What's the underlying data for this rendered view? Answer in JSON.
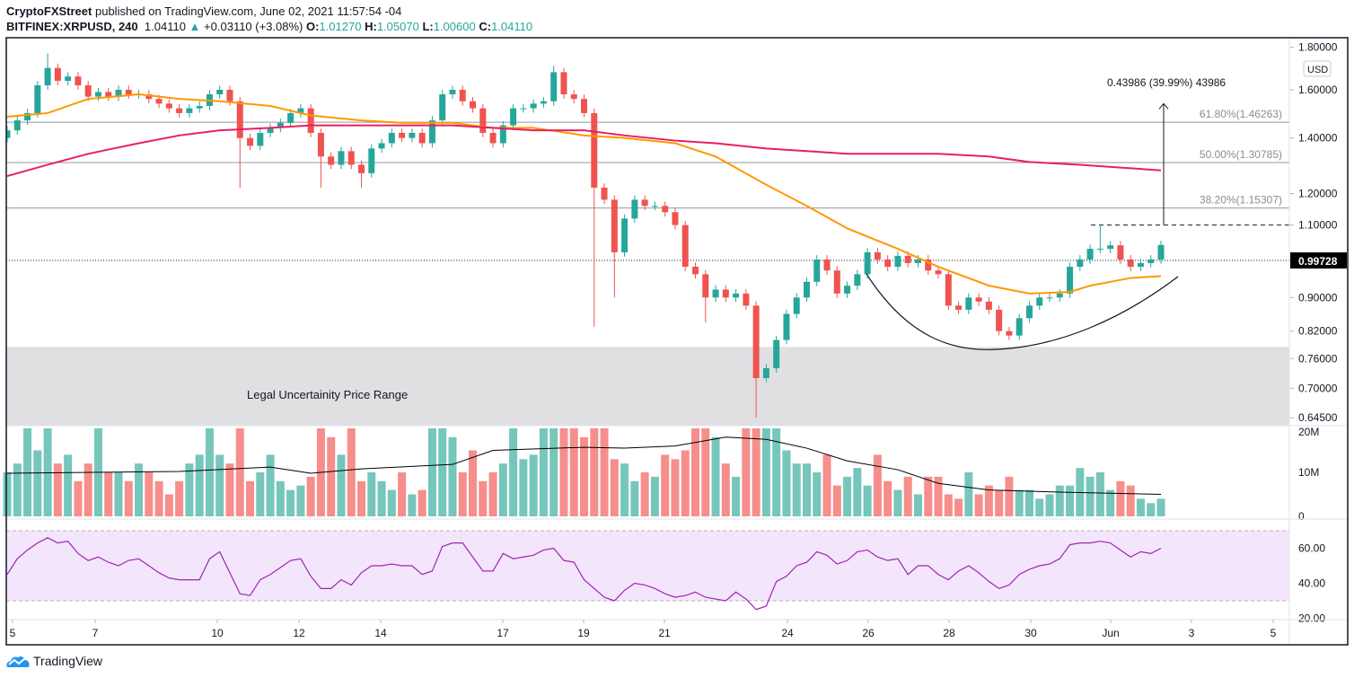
{
  "header": {
    "publisher": "CryptoFXStreet",
    "published_text": "published on TradingView.com, June 02, 2021 11:57:54 -04",
    "symbol": "BITFINEX:XRPUSD, 240",
    "last": "1.04110",
    "change": "+0.03110 (+3.08%)",
    "o_label": "O:",
    "o": "1.01270",
    "h_label": "H:",
    "h": "1.05070",
    "l_label": "L:",
    "l": "1.00600",
    "c_label": "C:",
    "c": "1.04110"
  },
  "footer": {
    "brand": "TradingView"
  },
  "colors": {
    "up": "#26a69a",
    "down": "#ef5350",
    "vol_up": "#76c6bc",
    "vol_down": "#f68e8c",
    "ma_fast": "#ff9800",
    "ma_slow": "#e91e63",
    "vol_ma": "#000000",
    "rsi": "#9c27b0",
    "rsi_band": "#f3e5fc",
    "zone": "#e0e0e3"
  },
  "chart_data": {
    "type": "candlestick",
    "interval": "240",
    "currency_label": "USD",
    "price_scale": "log",
    "y_ticks": [
      "1.80000",
      "1.60000",
      "1.40000",
      "1.20000",
      "1.10000",
      "0.90000",
      "0.82000",
      "0.76000",
      "0.70000",
      "0.64500"
    ],
    "x_ticks": [
      "5",
      "7",
      "10",
      "12",
      "14",
      "17",
      "19",
      "21",
      "24",
      "26",
      "28",
      "30",
      "Jun",
      "3",
      "5"
    ],
    "last_price_label": "0.99728",
    "last_price": 0.99728,
    "close": [
      1.43,
      1.47,
      1.5,
      1.62,
      1.7,
      1.64,
      1.66,
      1.62,
      1.57,
      1.59,
      1.57,
      1.6,
      1.58,
      1.58,
      1.56,
      1.54,
      1.52,
      1.5,
      1.52,
      1.53,
      1.58,
      1.6,
      1.55,
      1.4,
      1.37,
      1.42,
      1.44,
      1.46,
      1.5,
      1.52,
      1.42,
      1.33,
      1.3,
      1.35,
      1.3,
      1.27,
      1.36,
      1.38,
      1.42,
      1.4,
      1.42,
      1.38,
      1.47,
      1.58,
      1.6,
      1.55,
      1.52,
      1.42,
      1.38,
      1.45,
      1.52,
      1.52,
      1.54,
      1.55,
      1.68,
      1.58,
      1.56,
      1.5,
      1.22,
      1.18,
      1.02,
      1.12,
      1.18,
      1.16,
      1.16,
      1.14,
      1.1,
      0.98,
      0.96,
      0.9,
      0.92,
      0.9,
      0.91,
      0.88,
      0.72,
      0.74,
      0.8,
      0.86,
      0.9,
      0.94,
      1.0,
      0.97,
      0.91,
      0.93,
      0.96,
      1.02,
      1.0,
      0.98,
      1.01,
      0.99,
      1.0,
      0.97,
      0.96,
      0.88,
      0.87,
      0.9,
      0.89,
      0.87,
      0.82,
      0.81,
      0.85,
      0.88,
      0.9,
      0.9,
      0.91,
      0.98,
      1.0,
      1.03,
      1.03,
      1.04,
      1.0,
      0.98,
      0.99,
      1.0,
      1.0411
    ],
    "first_open": 1.4,
    "wick_extremes": {
      "4": {
        "high": 1.77
      },
      "23": {
        "low": 1.22
      },
      "31": {
        "low": 1.22
      },
      "35": {
        "low": 1.22
      },
      "54": {
        "high": 1.71
      },
      "58": {
        "low": 0.83
      },
      "60": {
        "low": 0.9
      },
      "69": {
        "low": 0.84
      },
      "74": {
        "low": 0.645
      },
      "108": {
        "high": 1.1
      }
    },
    "ma_fast": [
      [
        0,
        1.485
      ],
      [
        4,
        1.5
      ],
      [
        8,
        1.56
      ],
      [
        13,
        1.58
      ],
      [
        17,
        1.56
      ],
      [
        21,
        1.55
      ],
      [
        26,
        1.53
      ],
      [
        30,
        1.49
      ],
      [
        35,
        1.47
      ],
      [
        39,
        1.46
      ],
      [
        44,
        1.46
      ],
      [
        48,
        1.44
      ],
      [
        52,
        1.44
      ],
      [
        57,
        1.41
      ],
      [
        61,
        1.4
      ],
      [
        66,
        1.38
      ],
      [
        70,
        1.33
      ],
      [
        75,
        1.23
      ],
      [
        79,
        1.16
      ],
      [
        83,
        1.09
      ],
      [
        88,
        1.03
      ],
      [
        92,
        0.98
      ],
      [
        97,
        0.93
      ],
      [
        101,
        0.91
      ],
      [
        105,
        0.914
      ],
      [
        107,
        0.93
      ],
      [
        111,
        0.95
      ],
      [
        114,
        0.955
      ]
    ],
    "ma_slow": [
      [
        0,
        1.26
      ],
      [
        4,
        1.3
      ],
      [
        8,
        1.34
      ],
      [
        13,
        1.38
      ],
      [
        17,
        1.41
      ],
      [
        21,
        1.43
      ],
      [
        26,
        1.44
      ],
      [
        30,
        1.45
      ],
      [
        35,
        1.45
      ],
      [
        39,
        1.45
      ],
      [
        44,
        1.45
      ],
      [
        48,
        1.44
      ],
      [
        52,
        1.43
      ],
      [
        57,
        1.43
      ],
      [
        61,
        1.41
      ],
      [
        66,
        1.39
      ],
      [
        70,
        1.38
      ],
      [
        75,
        1.36
      ],
      [
        79,
        1.35
      ],
      [
        83,
        1.34
      ],
      [
        88,
        1.34
      ],
      [
        92,
        1.34
      ],
      [
        97,
        1.33
      ],
      [
        101,
        1.31
      ],
      [
        106,
        1.3
      ],
      [
        110,
        1.29
      ],
      [
        114,
        1.28
      ]
    ],
    "fib_levels": [
      {
        "price": 1.46263,
        "label": "61.80%(1.46263)"
      },
      {
        "price": 1.30785,
        "label": "50.00%(1.30785)"
      },
      {
        "price": 1.15307,
        "label": "38.20%(1.15307)"
      }
    ],
    "zone": {
      "low": 0.645,
      "high": 0.785,
      "label": "Legal Uncertainity Price Range"
    },
    "measure": {
      "from": 1.1,
      "to": 1.54,
      "label": "0.43986 (39.99%) 43986"
    },
    "volume": {
      "unit": "M",
      "ticks": [
        "20M",
        "10M",
        "0"
      ],
      "values": [
        10,
        12,
        20,
        15,
        20,
        12,
        14,
        8,
        12,
        20,
        10,
        10,
        8,
        12,
        10,
        8,
        5,
        8,
        12,
        14,
        20,
        14,
        12,
        20,
        8,
        10,
        14,
        8,
        6,
        7,
        9,
        20,
        18,
        14,
        20,
        8,
        10,
        8,
        6,
        10,
        5,
        6,
        20,
        20,
        18,
        10,
        15,
        8,
        10,
        12,
        20,
        13,
        14,
        20,
        20,
        20,
        20,
        18,
        20,
        20,
        13,
        12,
        8,
        10,
        9,
        14,
        13,
        15,
        20,
        20,
        18,
        12,
        9,
        20,
        20,
        20,
        20,
        15,
        12,
        12,
        10,
        14,
        7,
        9,
        11,
        7,
        14,
        8,
        6,
        9,
        5,
        9,
        9,
        5,
        4,
        10,
        5,
        7,
        6,
        9,
        6,
        6,
        4,
        5,
        7,
        7,
        11,
        9,
        10,
        6,
        8,
        7,
        4,
        3,
        4
      ],
      "ma": [
        [
          0,
          9.8
        ],
        [
          17,
          10.2
        ],
        [
          26,
          11.2
        ],
        [
          30,
          9.8
        ],
        [
          35,
          10.8
        ],
        [
          44,
          11.8
        ],
        [
          48,
          15
        ],
        [
          57,
          15.7
        ],
        [
          61,
          15.5
        ],
        [
          66,
          16
        ],
        [
          71,
          18
        ],
        [
          75,
          17.5
        ],
        [
          79,
          15.5
        ],
        [
          83,
          12.6
        ],
        [
          88,
          10.6
        ],
        [
          92,
          7.5
        ],
        [
          97,
          6
        ],
        [
          104,
          5.5
        ],
        [
          114,
          5
        ]
      ]
    },
    "rsi": {
      "ticks": [
        "60.00",
        "40.00",
        "20.00"
      ],
      "upper": 70,
      "lower": 30,
      "values": [
        45,
        54,
        59,
        63,
        66,
        63,
        64,
        57,
        53,
        55,
        52,
        50,
        53,
        54,
        50,
        46,
        43,
        42,
        42,
        42,
        54,
        58,
        46,
        34,
        33,
        42,
        45,
        49,
        53,
        54,
        44,
        37,
        37,
        42,
        39,
        46,
        50,
        50,
        51,
        50,
        50,
        45,
        47,
        61,
        63,
        63,
        55,
        47,
        47,
        57,
        54,
        55,
        56,
        59,
        60,
        53,
        52,
        42,
        37,
        32,
        30,
        36,
        40,
        39,
        37,
        34,
        32,
        33,
        35,
        32,
        31,
        30,
        35,
        31,
        25,
        27,
        41,
        44,
        50,
        52,
        58,
        56,
        51,
        53,
        58,
        59,
        55,
        53,
        54,
        45,
        50,
        50,
        45,
        42,
        47,
        50,
        46,
        41,
        37,
        39,
        45,
        48,
        50,
        51,
        54,
        62,
        63,
        63,
        64,
        63,
        59,
        55,
        58,
        57,
        60
      ]
    }
  }
}
